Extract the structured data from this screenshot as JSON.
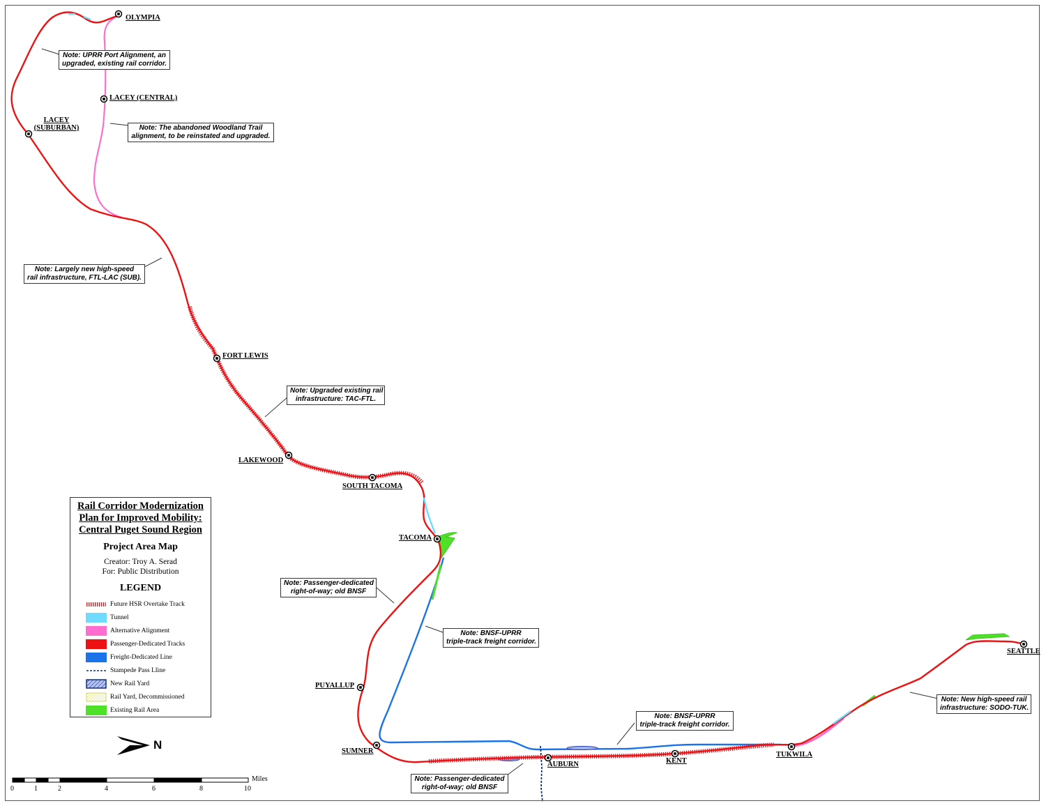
{
  "stations": [
    {
      "id": "olympia",
      "name": "OLYMPIA"
    },
    {
      "id": "lacey-central",
      "name": "LACEY (CENTRAL)"
    },
    {
      "id": "lacey-suburban",
      "name_line1": "LACEY",
      "name_line2": "(SUBURBAN)"
    },
    {
      "id": "fort-lewis",
      "name": "FORT LEWIS"
    },
    {
      "id": "lakewood",
      "name": "LAKEWOOD"
    },
    {
      "id": "south-tacoma",
      "name": "SOUTH TACOMA"
    },
    {
      "id": "tacoma",
      "name": "TACOMA"
    },
    {
      "id": "puyallup",
      "name": "PUYALLUP"
    },
    {
      "id": "sumner",
      "name": "SUMNER"
    },
    {
      "id": "auburn",
      "name": "AUBURN"
    },
    {
      "id": "kent",
      "name": "KENT"
    },
    {
      "id": "tukwila",
      "name": "TUKWILA"
    },
    {
      "id": "seattle",
      "name": "SEATTLE"
    }
  ],
  "notes": {
    "uprr_port": {
      "line1": "Note: UPRR Port Alignment, an",
      "line2": "upgraded, existing rail corridor."
    },
    "woodland": {
      "line1": "Note: The abandoned Woodland Trail",
      "line2": "alignment, to be reinstated and upgraded."
    },
    "ftl_lac": {
      "line1": "Note: Largely new high-speed",
      "line2": "rail infrastructure, FTL-LAC (SUB)."
    },
    "tac_ftl": {
      "line1": "Note: Upgraded existing rail",
      "line2": "infrastructure: TAC-FTL."
    },
    "old_bnsf_1": {
      "line1": "Note: Passenger-dedicated",
      "line2": "right-of-way; old BNSF"
    },
    "bnsf_uprr_1": {
      "line1": "Note: BNSF-UPRR",
      "line2": "triple-track freight corridor."
    },
    "bnsf_uprr_2": {
      "line1": "Note: BNSF-UPRR",
      "line2": "triple-track freight corridor."
    },
    "old_bnsf_2": {
      "line1": "Note: Passenger-dedicated",
      "line2": "right-of-way; old BNSF"
    },
    "sodo_tuk": {
      "line1": "Note: New high-speed rail",
      "line2": "infrastructure: SODO-TUK."
    }
  },
  "legend": {
    "title_line1": "Rail Corridor Modernization",
    "title_line2": "Plan for Improved Mobility:",
    "title_line3": "Central Puget Sound Region",
    "subtitle": "Project Area Map",
    "creator": "Creator: Troy A. Serad",
    "distribution": "For: Public Distribution",
    "heading": "LEGEND",
    "items": [
      {
        "label": "Future HSR Overtake Track",
        "color": "#e8141c"
      },
      {
        "label": "Tunnel",
        "color": "#6fdcff"
      },
      {
        "label": "Alternative Alignment",
        "color": "#ff6ecf"
      },
      {
        "label": "Passenger-Dedicated Tracks",
        "color": "#ee1111"
      },
      {
        "label": "Freight-Dedicated Line",
        "color": "#1a73e8"
      },
      {
        "label": "Stampede Pass Lline",
        "color": "#10306e"
      },
      {
        "label": "New Rail Yard",
        "color": "#2b3fa8"
      },
      {
        "label": "Rail Yard, Decommissioned",
        "color": "#e3e85a"
      },
      {
        "label": "Existing Rail Area",
        "color": "#4fe02a"
      }
    ]
  },
  "north_arrow": {
    "label": "N"
  },
  "scale_bar": {
    "unit": "Miles",
    "ticks": [
      "0",
      "1",
      "2",
      "4",
      "6",
      "8",
      "10"
    ]
  }
}
